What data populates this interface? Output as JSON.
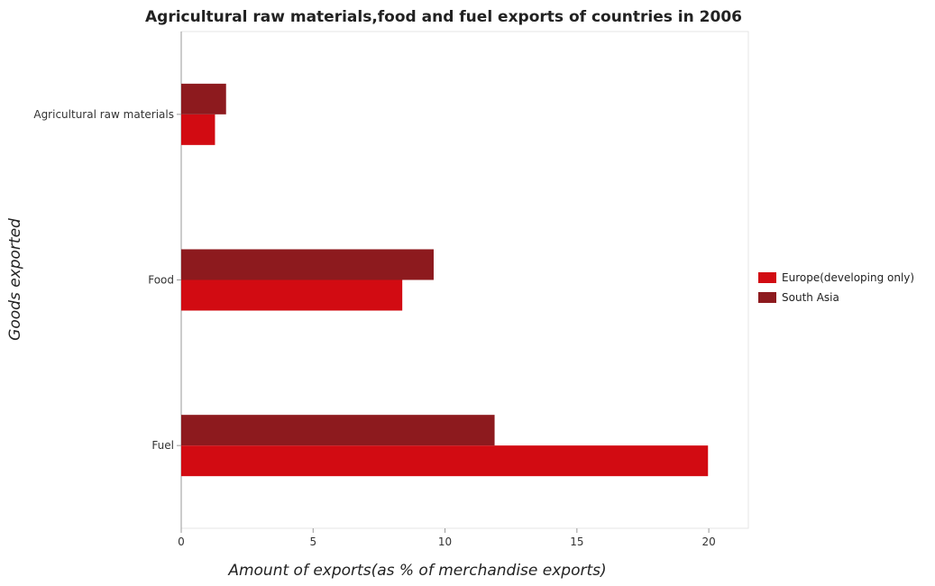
{
  "chart_data": {
    "type": "bar",
    "orientation": "horizontal",
    "title": "Agricultural raw materials,food and fuel exports of countries in 2006",
    "xlabel": "Amount of exports(as % of merchandise exports)",
    "ylabel": "Goods exported",
    "categories": [
      "Agricultural raw materials",
      "Food",
      "Fuel"
    ],
    "series": [
      {
        "name": "Europe(developing only)",
        "color": "#d20b12",
        "values": [
          1.28,
          8.38,
          19.97
        ]
      },
      {
        "name": "South Asia",
        "color": "#8d1a1e",
        "values": [
          1.7,
          9.57,
          11.88
        ]
      }
    ],
    "xlim": [
      0,
      21.5
    ],
    "xticks": [
      0,
      5,
      10,
      15,
      20
    ],
    "grid": false,
    "legend_position": "right"
  }
}
